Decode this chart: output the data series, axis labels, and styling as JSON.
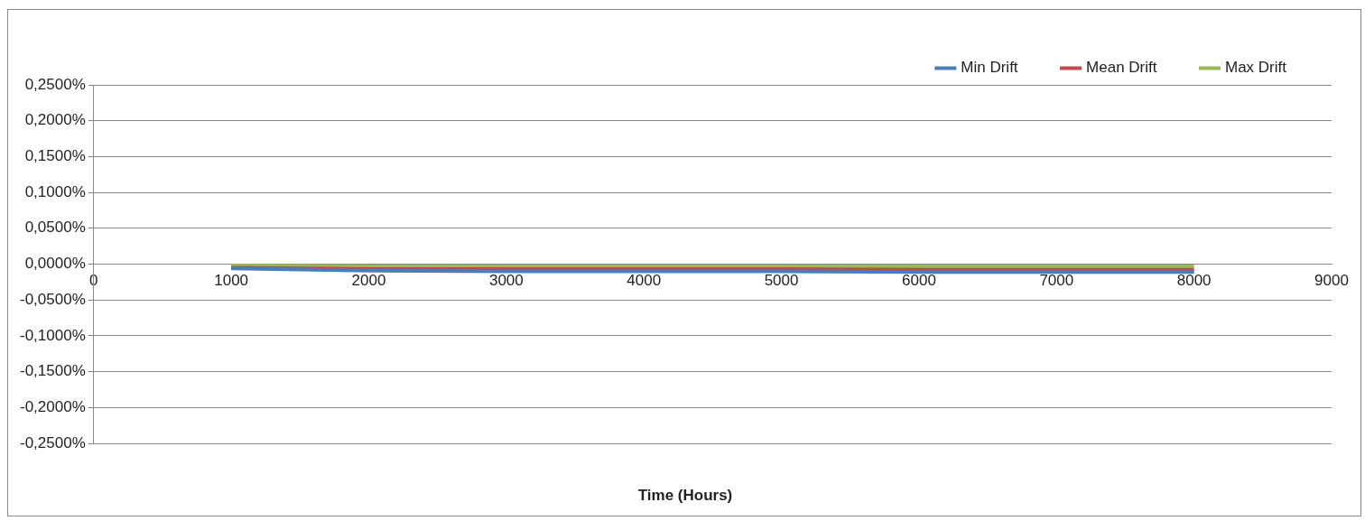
{
  "chart_data": {
    "type": "line",
    "xlabel": "Time (Hours)",
    "x": [
      1000,
      2000,
      3000,
      4000,
      5000,
      6000,
      7000,
      8000
    ],
    "series": [
      {
        "name": "Min Drift",
        "color": "#4a7ebb",
        "values": [
          -0.006,
          -0.009,
          -0.01,
          -0.01,
          -0.01,
          -0.011,
          -0.011,
          -0.011
        ]
      },
      {
        "name": "Mean Drift",
        "color": "#be4b48",
        "values": [
          -0.005,
          -0.007,
          -0.007,
          -0.007,
          -0.007,
          -0.008,
          -0.008,
          -0.008
        ]
      },
      {
        "name": "Max Drift",
        "color": "#98b954",
        "values": [
          -0.002,
          -0.003,
          -0.003,
          -0.003,
          -0.003,
          -0.003,
          -0.003,
          -0.003
        ]
      }
    ],
    "xlim": [
      0,
      9000
    ],
    "xticks": [
      0,
      1000,
      2000,
      3000,
      4000,
      5000,
      6000,
      7000,
      8000,
      9000
    ],
    "ylim": [
      -0.25,
      0.25
    ],
    "yticks": [
      {
        "value": -0.25,
        "label": "-0,2500%"
      },
      {
        "value": -0.2,
        "label": "-0,2000%"
      },
      {
        "value": -0.15,
        "label": "-0,1500%"
      },
      {
        "value": -0.1,
        "label": "-0,1000%"
      },
      {
        "value": -0.05,
        "label": "-0,0500%"
      },
      {
        "value": 0,
        "label": "0,0000%"
      },
      {
        "value": 0.05,
        "label": "0,0500%"
      },
      {
        "value": 0.1,
        "label": "0,1000%"
      },
      {
        "value": 0.15,
        "label": "0,1500%"
      },
      {
        "value": 0.2,
        "label": "0,2000%"
      },
      {
        "value": 0.25,
        "label": "0,2500%"
      }
    ],
    "grid": "y",
    "legend": "top right",
    "marker": "none",
    "line_style": "solid"
  }
}
